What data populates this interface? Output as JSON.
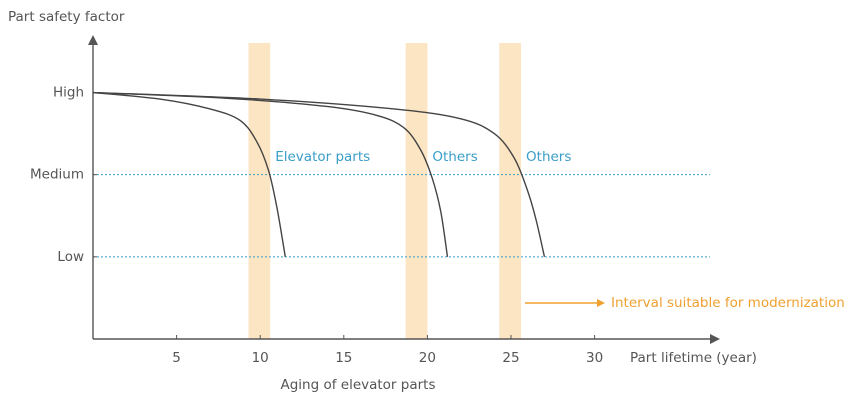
{
  "chart_data": {
    "type": "line",
    "title": "Aging of elevator parts",
    "y_label": "Part safety factor",
    "x_label": "Part lifetime (year)",
    "xlim": [
      0,
      37.5
    ],
    "xticks": [
      5,
      10,
      15,
      20,
      25,
      30
    ],
    "ylim": [
      0,
      3.7
    ],
    "yticks": [
      {
        "value": 3,
        "label": "High"
      },
      {
        "value": 2,
        "label": "Medium"
      },
      {
        "value": 1,
        "label": "Low"
      }
    ],
    "reference_lines": [
      2,
      1
    ],
    "reference_color": "#3a9ec8",
    "bands": [
      [
        9.3,
        10.6
      ],
      [
        18.7,
        20.0
      ],
      [
        24.3,
        25.6
      ]
    ],
    "band_color": "#fbe5c3",
    "label_color": "#3a9ec8",
    "series": [
      {
        "name": "Elevator parts",
        "color": "#444",
        "x": [
          0,
          4,
          7,
          8.8,
          9.8,
          10.5,
          11,
          11.5
        ],
        "values": [
          3,
          2.92,
          2.8,
          2.66,
          2.4,
          2.05,
          1.6,
          1.0
        ]
      },
      {
        "name": "Others",
        "color": "#444",
        "x": [
          0,
          8,
          14,
          17,
          18.6,
          19.6,
          20.3,
          20.8,
          21.2
        ],
        "values": [
          3,
          2.93,
          2.83,
          2.72,
          2.57,
          2.3,
          1.95,
          1.55,
          1.0
        ]
      },
      {
        "name": "Others",
        "color": "#444",
        "x": [
          0,
          10,
          18,
          22,
          24,
          25.2,
          26,
          26.5,
          27
        ],
        "values": [
          3,
          2.92,
          2.8,
          2.68,
          2.5,
          2.2,
          1.8,
          1.45,
          1.0
        ]
      }
    ],
    "annotation": {
      "text": "Interval suitable for modernization",
      "color": "#f0a030"
    }
  }
}
